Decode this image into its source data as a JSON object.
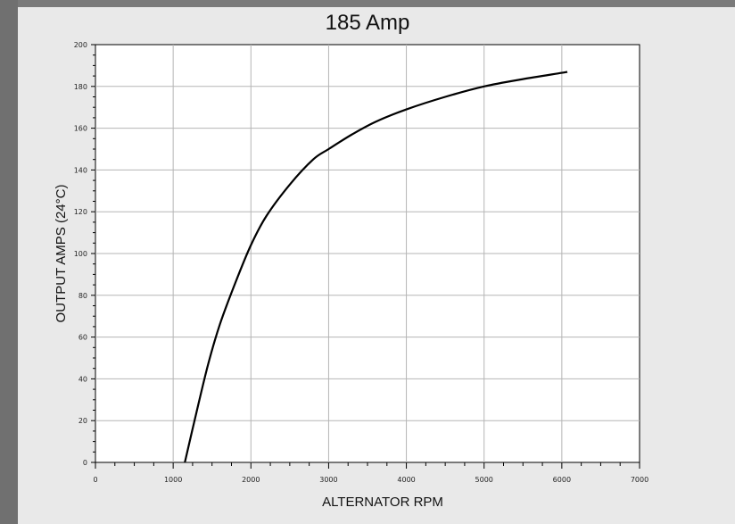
{
  "chart_data": {
    "type": "line",
    "title": "185 Amp",
    "xlabel": "ALTERNATOR RPM",
    "ylabel": "OUTPUT AMPS (24°C)",
    "xlim": [
      0,
      7000
    ],
    "ylim": [
      0,
      200
    ],
    "x_ticks": [
      "0",
      "1000",
      "2000",
      "3000",
      "4000",
      "5000",
      "6000",
      "7000"
    ],
    "y_ticks": [
      "0",
      "20",
      "40",
      "60",
      "80",
      "100",
      "120",
      "140",
      "160",
      "180",
      "200"
    ],
    "grid": true,
    "series": [
      {
        "color": "#000000",
        "x": [
          1150,
          1300,
          1450,
          1600,
          1800,
          2000,
          2200,
          2500,
          2800,
          3000,
          3300,
          3600,
          4000,
          4500,
          5000,
          5500,
          6000,
          6070
        ],
        "y": [
          0,
          24,
          47,
          66,
          86,
          104,
          118,
          133,
          145,
          150,
          157,
          163,
          169,
          175,
          180,
          183.5,
          186.5,
          187
        ]
      }
    ]
  }
}
